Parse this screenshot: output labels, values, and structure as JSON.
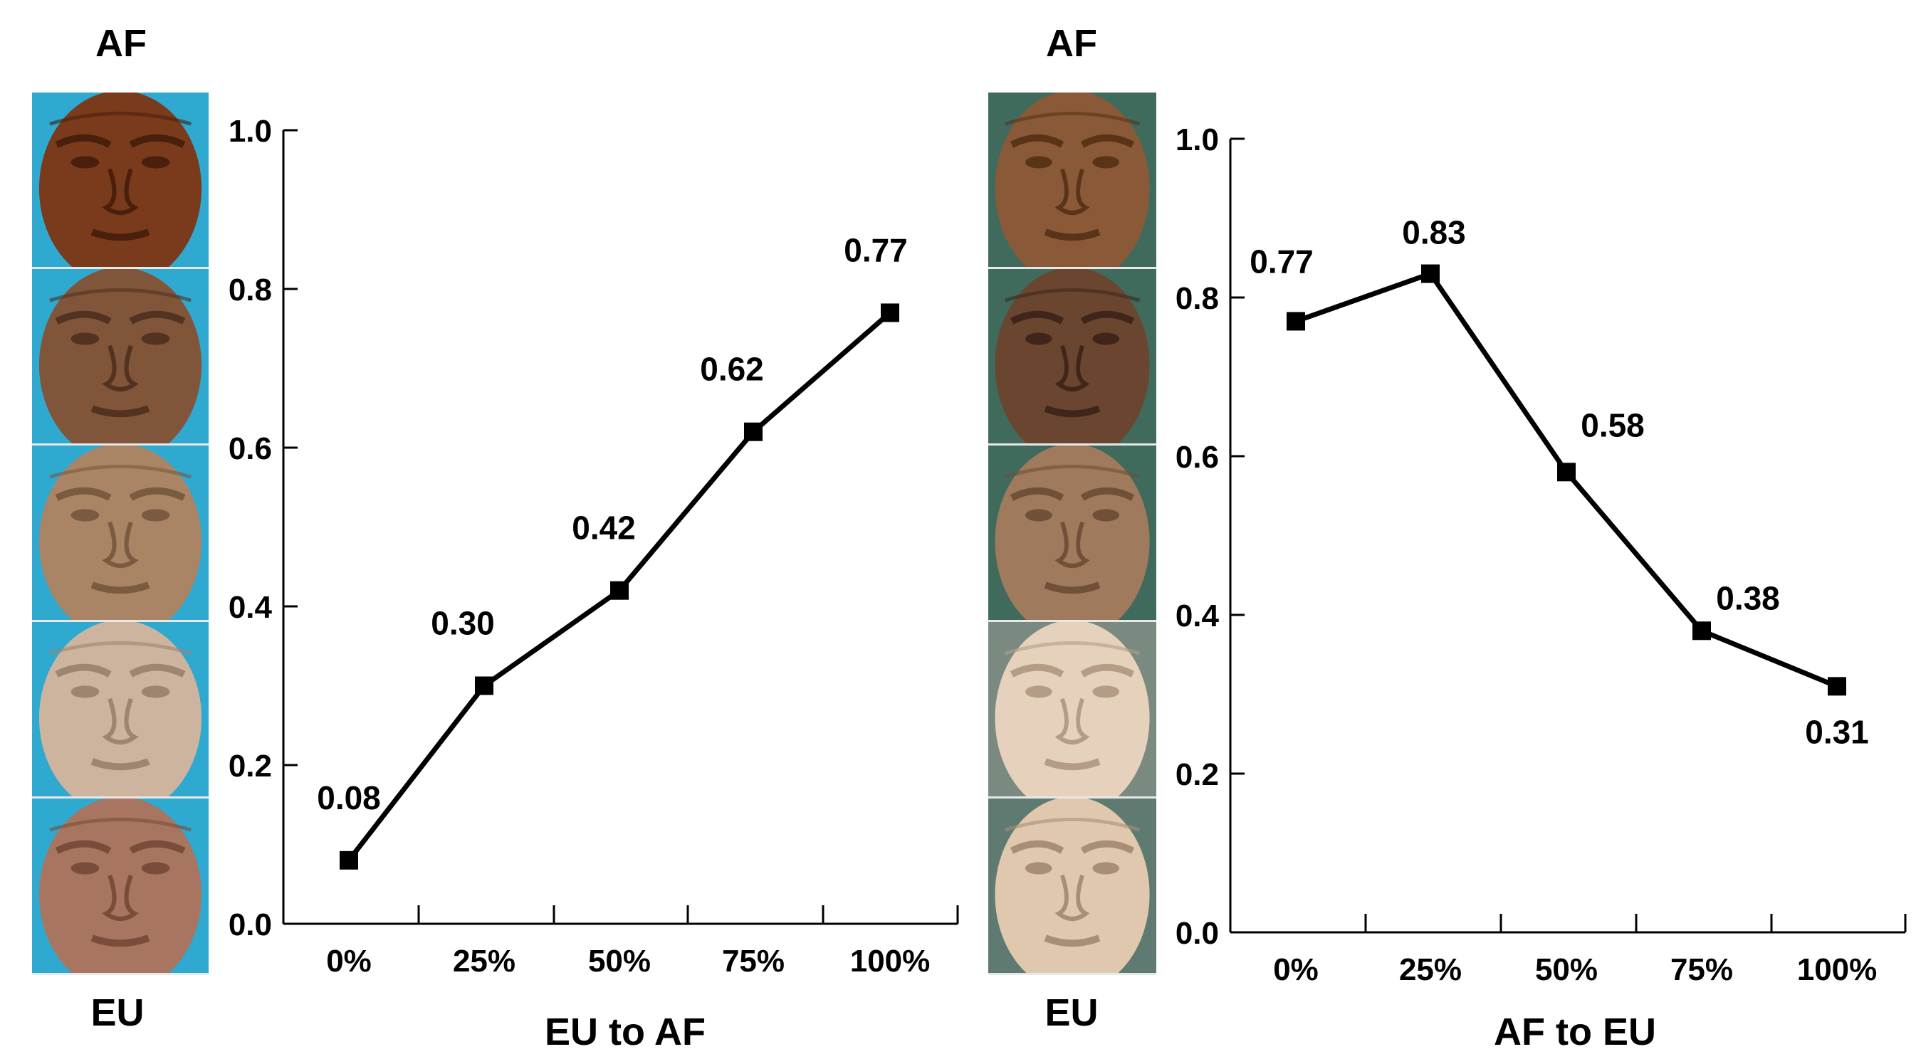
{
  "faces": {
    "left": {
      "top_label": "AF",
      "bottom_label": "EU",
      "tile_colors": [
        {
          "bg": "#2fa9cf",
          "skin": "#7a3a1c",
          "skin_dark": "#4a1f0c"
        },
        {
          "bg": "#2fa9cf",
          "skin": "#80553a",
          "skin_dark": "#523220"
        },
        {
          "bg": "#2fa9cf",
          "skin": "#a98566",
          "skin_dark": "#7a5a40"
        },
        {
          "bg": "#2fa9cf",
          "skin": "#cdb49e",
          "skin_dark": "#9d8570"
        },
        {
          "bg": "#2fa9cf",
          "skin": "#a87560",
          "skin_dark": "#7a4c3a"
        }
      ]
    },
    "right": {
      "top_label": "AF",
      "bottom_label": "EU",
      "tile_colors": [
        {
          "bg": "#3f6a5c",
          "skin": "#8a5a38",
          "skin_dark": "#5a3418"
        },
        {
          "bg": "#3f6a5c",
          "skin": "#6a4630",
          "skin_dark": "#40261a"
        },
        {
          "bg": "#3f6a5c",
          "skin": "#a07a5c",
          "skin_dark": "#705038"
        },
        {
          "bg": "#7a8a80",
          "skin": "#e6d2bc",
          "skin_dark": "#b49c86"
        },
        {
          "bg": "#5f7a70",
          "skin": "#e0c8ae",
          "skin_dark": "#a88e76"
        }
      ]
    }
  },
  "chart_data": [
    {
      "type": "line",
      "title": "",
      "xlabel": "EU to AF",
      "ylabel": "",
      "categories": [
        "0%",
        "25%",
        "50%",
        "75%",
        "100%"
      ],
      "values": [
        0.08,
        0.3,
        0.42,
        0.62,
        0.77
      ],
      "data_labels": [
        "0.08",
        "0.30",
        "0.42",
        "0.62",
        "0.77"
      ],
      "yticks": [
        "0.0",
        "0.2",
        "0.4",
        "0.6",
        "0.8",
        "1.0"
      ],
      "ylim": [
        0,
        1.0
      ],
      "grid": false,
      "line_color": "#000000"
    },
    {
      "type": "line",
      "title": "",
      "xlabel": "AF to EU",
      "ylabel": "",
      "categories": [
        "0%",
        "25%",
        "50%",
        "75%",
        "100%"
      ],
      "values": [
        0.77,
        0.83,
        0.58,
        0.38,
        0.31
      ],
      "data_labels": [
        "0.77",
        "0.83",
        "0.58",
        "0.38",
        "0.31"
      ],
      "yticks": [
        "0.0",
        "0.2",
        "0.4",
        "0.6",
        "0.8",
        "1.0"
      ],
      "ylim": [
        0,
        1.0
      ],
      "grid": false,
      "line_color": "#000000"
    }
  ]
}
